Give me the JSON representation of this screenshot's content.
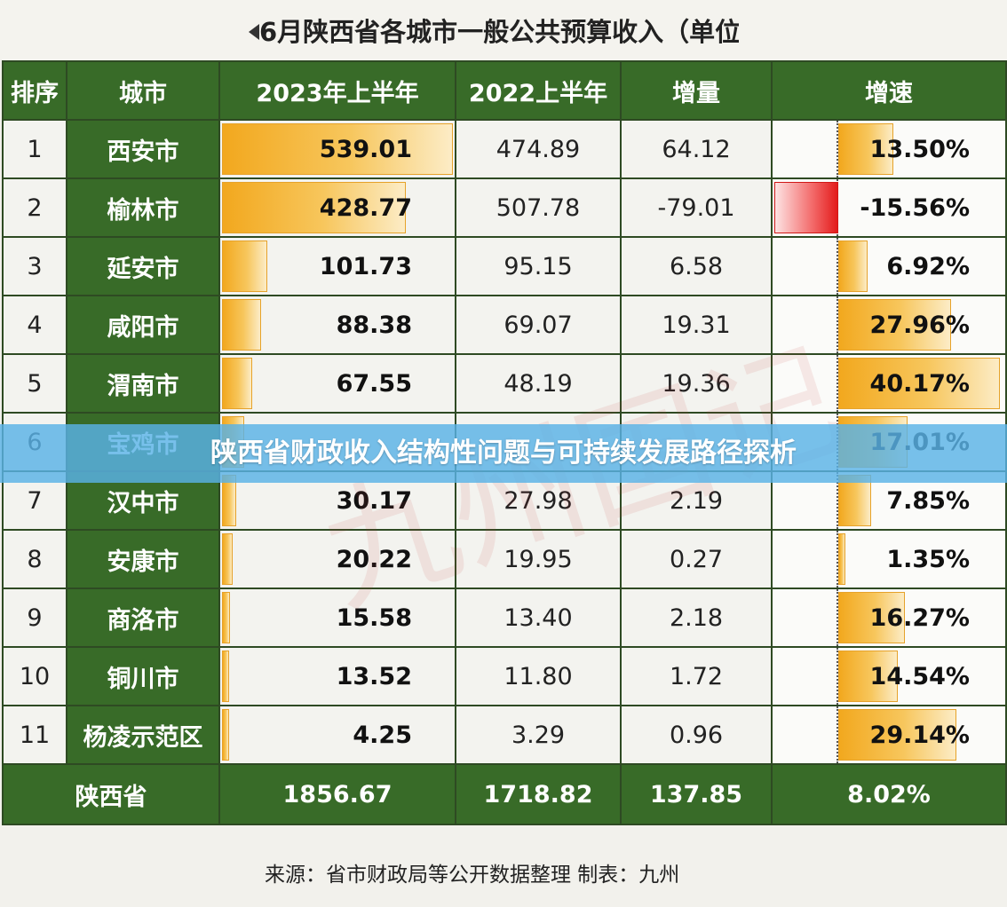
{
  "title": "6月陕西省各城市一般公共预算收入（单位",
  "headers": [
    "排序",
    "城市",
    "2023年上半年",
    "2022上半年",
    "增量",
    "增速"
  ],
  "chart_data": {
    "type": "table",
    "columns": [
      "排序",
      "城市",
      "2023年上半年",
      "2022上半年",
      "增量",
      "增速"
    ],
    "rows": [
      {
        "rank": "1",
        "city": "西安市",
        "y2023": "539.01",
        "y2022": "474.89",
        "delta": "64.12",
        "growth": "13.50%",
        "v2023": 539.01,
        "g": 13.5
      },
      {
        "rank": "2",
        "city": "榆林市",
        "y2023": "428.77",
        "y2022": "507.78",
        "delta": "-79.01",
        "growth": "-15.56%",
        "v2023": 428.77,
        "g": -15.56
      },
      {
        "rank": "3",
        "city": "延安市",
        "y2023": "101.73",
        "y2022": "95.15",
        "delta": "6.58",
        "growth": "6.92%",
        "v2023": 101.73,
        "g": 6.92
      },
      {
        "rank": "4",
        "city": "咸阳市",
        "y2023": "88.38",
        "y2022": "69.07",
        "delta": "19.31",
        "growth": "27.96%",
        "v2023": 88.38,
        "g": 27.96
      },
      {
        "rank": "5",
        "city": "渭南市",
        "y2023": "67.55",
        "y2022": "48.19",
        "delta": "19.36",
        "growth": "40.17%",
        "v2023": 67.55,
        "g": 40.17
      },
      {
        "rank": "6",
        "city": "宝鸡市",
        "y2023": "",
        "y2022": "",
        "delta": "",
        "growth": "17.01%",
        "v2023": 48,
        "g": 17.01
      },
      {
        "rank": "7",
        "city": "汉中市",
        "y2023": "30.17",
        "y2022": "27.98",
        "delta": "2.19",
        "growth": "7.85%",
        "v2023": 30.17,
        "g": 7.85
      },
      {
        "rank": "8",
        "city": "安康市",
        "y2023": "20.22",
        "y2022": "19.95",
        "delta": "0.27",
        "growth": "1.35%",
        "v2023": 20.22,
        "g": 1.35
      },
      {
        "rank": "9",
        "city": "商洛市",
        "y2023": "15.58",
        "y2022": "13.40",
        "delta": "2.18",
        "growth": "16.27%",
        "v2023": 15.58,
        "g": 16.27
      },
      {
        "rank": "10",
        "city": "铜川市",
        "y2023": "13.52",
        "y2022": "11.80",
        "delta": "1.72",
        "growth": "14.54%",
        "v2023": 13.52,
        "g": 14.54
      },
      {
        "rank": "11",
        "city": "杨凌示范区",
        "y2023": "4.25",
        "y2022": "3.29",
        "delta": "0.96",
        "growth": "29.14%",
        "v2023": 4.25,
        "g": 29.14
      }
    ],
    "total": {
      "label": "陕西省",
      "y2023": "1856.67",
      "y2022": "1718.82",
      "delta": "137.85",
      "growth": "8.02%"
    }
  },
  "banner": "陕西省财政收入结构性问题与可持续发展路径探析",
  "footer": "来源：省市财政局等公开数据整理    制表：九州",
  "watermark": "九州国记",
  "colors": {
    "header_green": "#386b28",
    "bar_orange": "#f2a81e",
    "negative_red": "#e31b1b",
    "banner_blue": "#59b2e6"
  }
}
